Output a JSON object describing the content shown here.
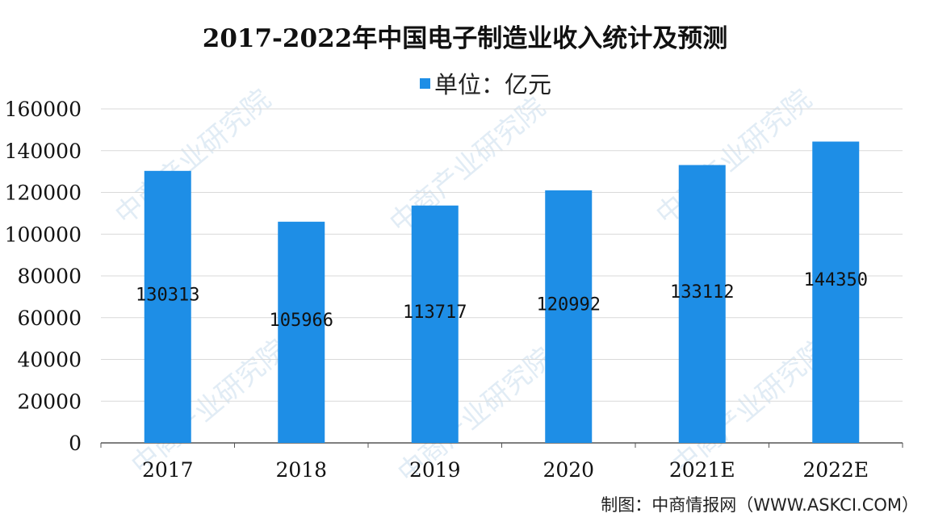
{
  "title": "2017-2022年中国电子制造业收入统计及预测",
  "legend_label": "单位：亿元",
  "source": "制图：中商情报网（WWW.ASKCI.COM）",
  "watermark_text": "中商产业研究院",
  "colors": {
    "bar": "#1e8ee6",
    "grid": "#d9d9d9",
    "axis": "#555555",
    "text": "#111111"
  },
  "chart_data": {
    "type": "bar",
    "categories": [
      "2017",
      "2018",
      "2019",
      "2020",
      "2021E",
      "2022E"
    ],
    "values": [
      130313,
      105966,
      113717,
      120992,
      133112,
      144350
    ],
    "data_labels": [
      "130313",
      "105966",
      "113717",
      "120992",
      "133112",
      "144350"
    ],
    "ylim": [
      0,
      160000
    ],
    "yticks": [
      "0",
      "20000",
      "40000",
      "60000",
      "80000",
      "100000",
      "120000",
      "140000",
      "160000"
    ],
    "grid": true,
    "legend_position": "top"
  }
}
